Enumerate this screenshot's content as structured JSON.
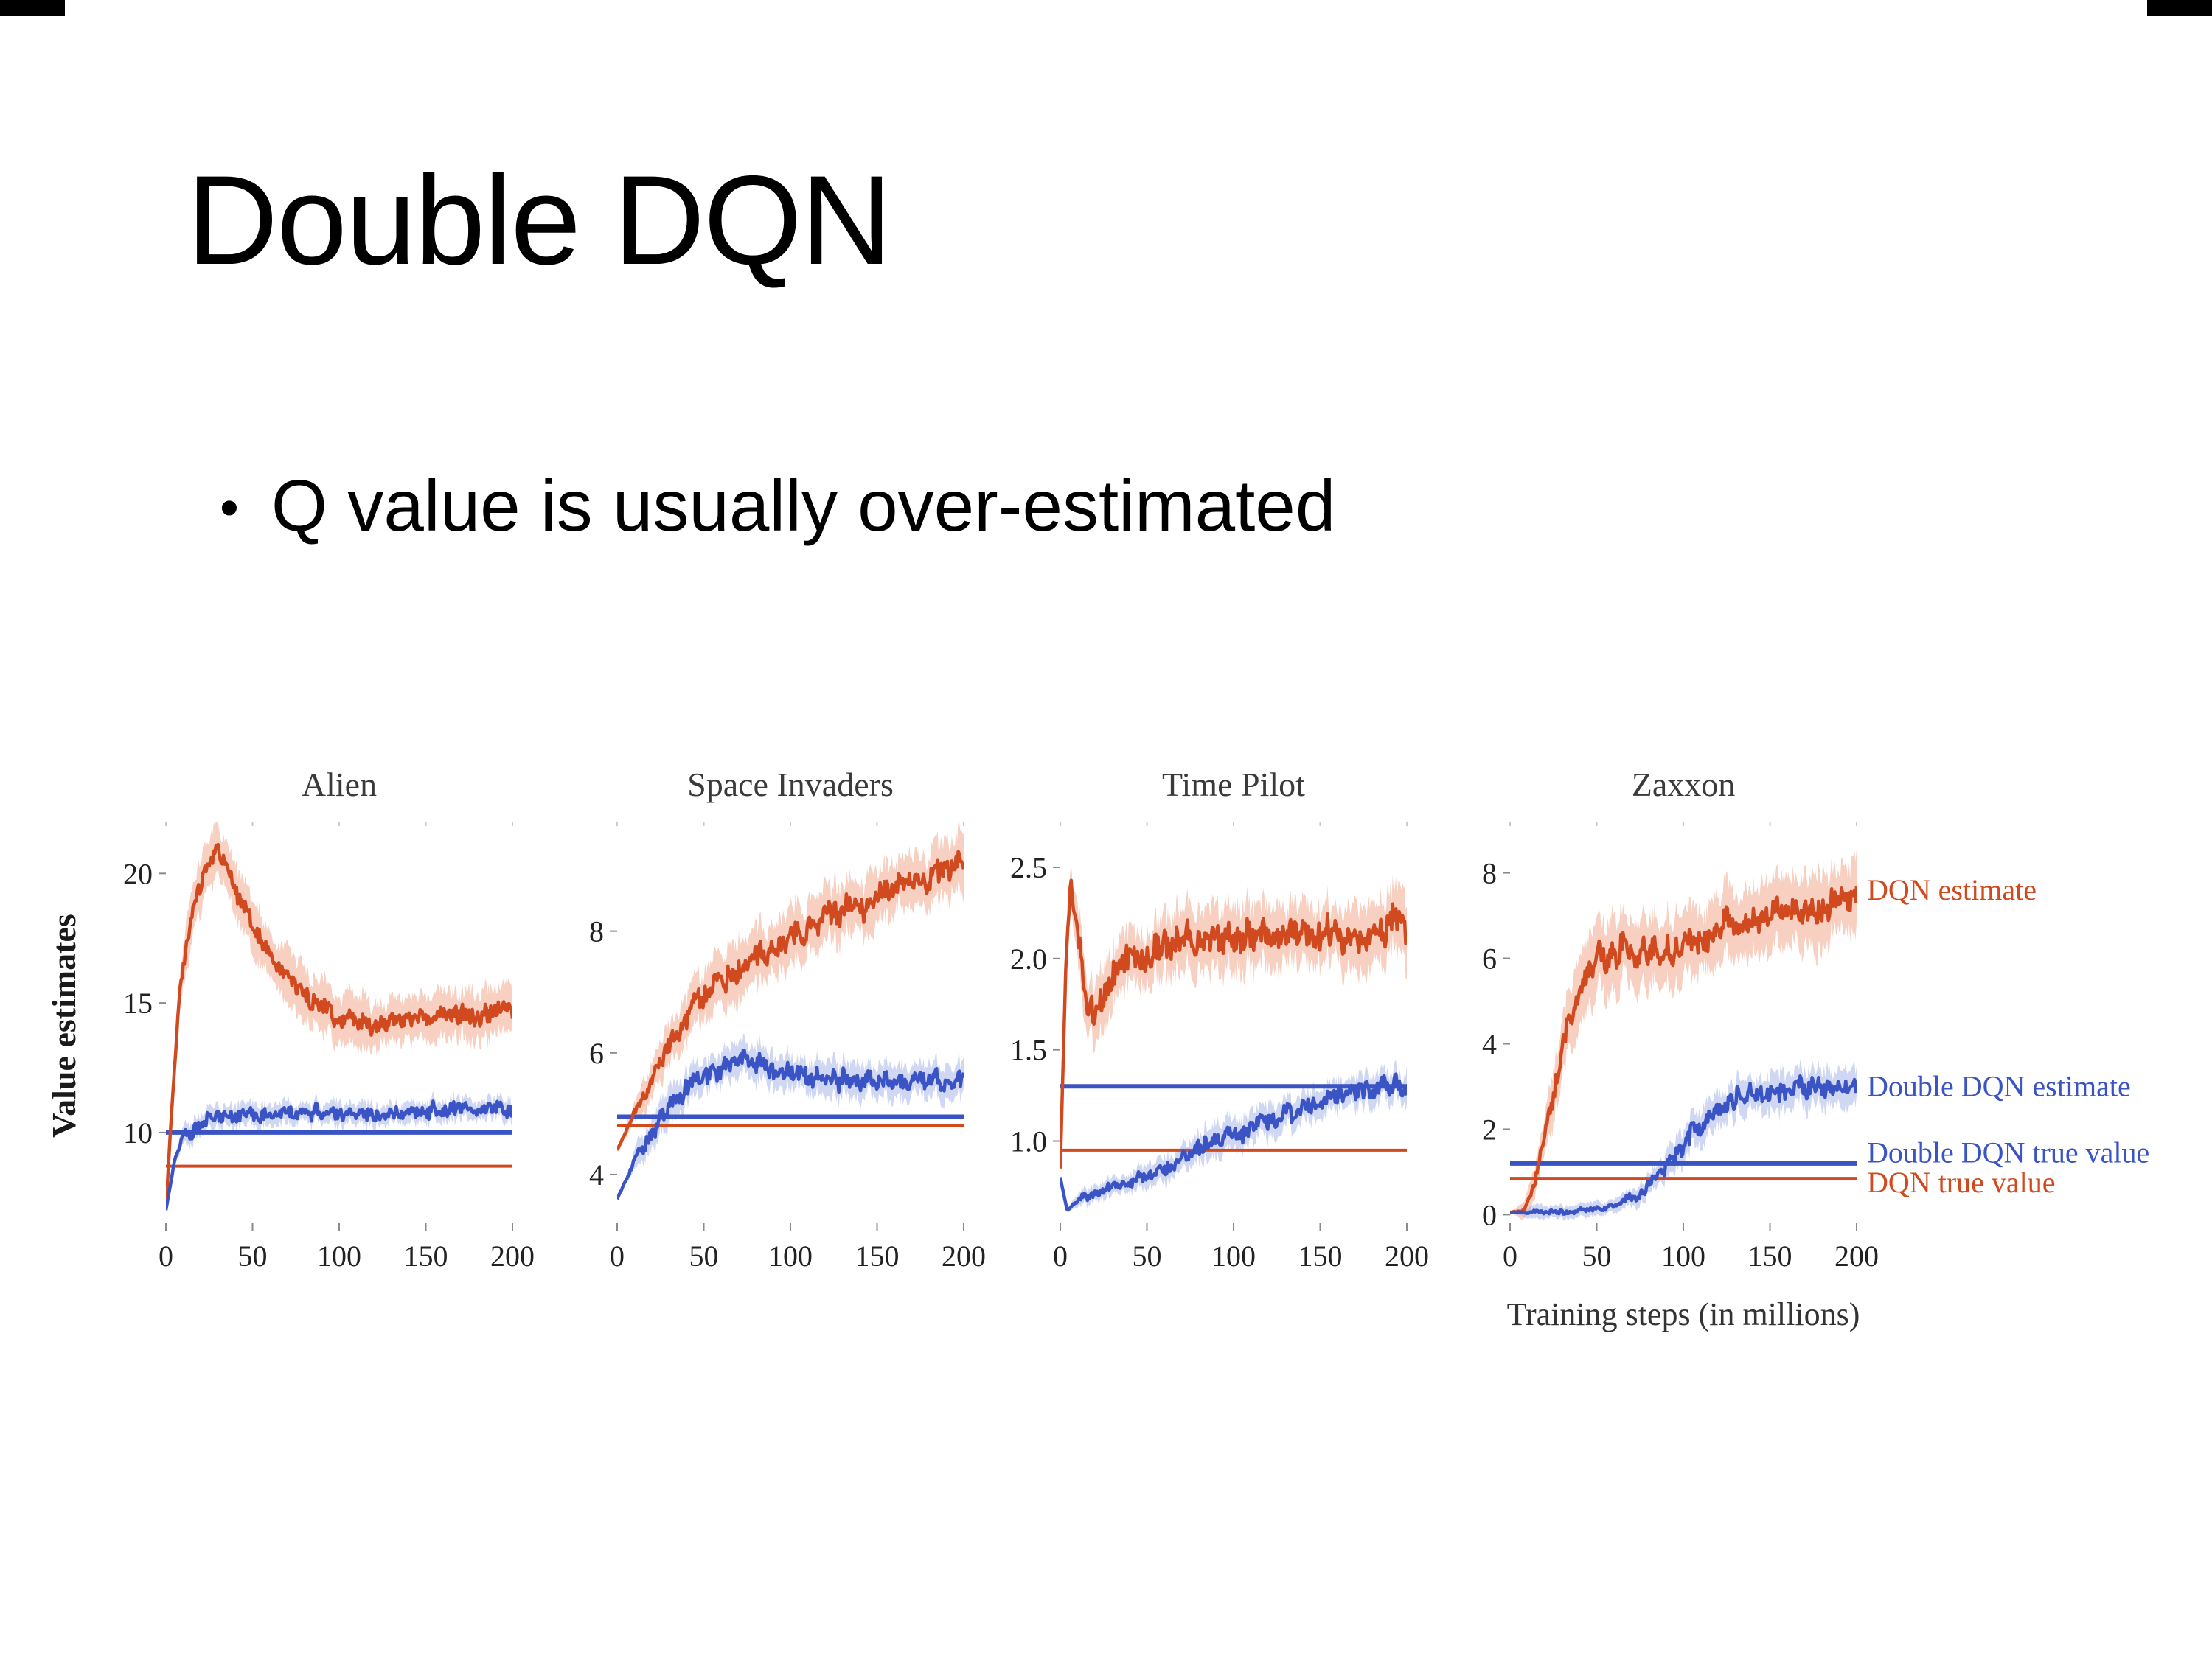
{
  "slide": {
    "title": "Double DQN",
    "bullet": "Q value is usually over-estimated"
  },
  "figure": {
    "ylabel": "Value estimates",
    "xlabel": "Training steps (in millions)",
    "colors": {
      "dqn": "#d1491f",
      "dqn_band": "#f0a284",
      "ddqn": "#3a53c5",
      "ddqn_band": "#9fb0e8"
    },
    "legend": [
      {
        "label": "DQN estimate",
        "color_key": "dqn",
        "y": 7.6
      },
      {
        "label": "Double DQN estimate",
        "color_key": "ddqn",
        "y": 3.0
      },
      {
        "label": "Double DQN true value",
        "color_key": "ddqn",
        "y": 1.45
      },
      {
        "label": "DQN true value",
        "color_key": "dqn",
        "y": 0.75
      }
    ]
  },
  "chart_data": [
    {
      "type": "line",
      "title": "Alien",
      "xlim": [
        0,
        200
      ],
      "xticks": [
        0,
        50,
        100,
        150,
        200
      ],
      "xtick_labels": [
        "0",
        "50",
        "100",
        "150",
        "200"
      ],
      "ylim": [
        6.5,
        22
      ],
      "yticks": [
        10,
        15,
        20
      ],
      "ytick_labels": [
        "10",
        "15",
        "20"
      ],
      "series": [
        {
          "name": "DQN estimate",
          "color_key": "dqn",
          "x": [
            0,
            3,
            8,
            15,
            22,
            30,
            38,
            50,
            65,
            80,
            100,
            120,
            140,
            160,
            180,
            200
          ],
          "y": [
            7.0,
            10.5,
            15.5,
            18.5,
            20.2,
            20.8,
            19.6,
            18.0,
            16.4,
            15.3,
            14.4,
            14.2,
            14.4,
            14.6,
            14.5,
            15.0
          ],
          "noise": 0.5,
          "band": 1.15
        },
        {
          "name": "Double DQN estimate",
          "color_key": "ddqn",
          "x": [
            0,
            5,
            10,
            20,
            30,
            50,
            80,
            110,
            140,
            170,
            200
          ],
          "y": [
            7.0,
            8.9,
            9.9,
            10.3,
            10.6,
            10.7,
            10.8,
            10.7,
            10.8,
            10.9,
            11.0
          ],
          "noise": 0.38,
          "band": 0.5
        }
      ],
      "hlines": [
        {
          "name": "Double DQN true value",
          "color_key": "ddqn",
          "y": 10.0
        },
        {
          "name": "DQN true value",
          "color_key": "dqn",
          "y": 8.7
        }
      ]
    },
    {
      "type": "line",
      "title": "Space Invaders",
      "xlim": [
        0,
        200
      ],
      "xticks": [
        0,
        50,
        100,
        150,
        200
      ],
      "xtick_labels": [
        "0",
        "50",
        "100",
        "150",
        "200"
      ],
      "ylim": [
        3.2,
        9.8
      ],
      "yticks": [
        4,
        6,
        8
      ],
      "ytick_labels": [
        "4",
        "6",
        "8"
      ],
      "series": [
        {
          "name": "DQN estimate",
          "color_key": "dqn",
          "x": [
            0,
            5,
            10,
            20,
            30,
            45,
            60,
            80,
            100,
            120,
            140,
            160,
            180,
            200
          ],
          "y": [
            4.4,
            4.7,
            5.0,
            5.6,
            6.2,
            6.8,
            7.2,
            7.6,
            7.9,
            8.2,
            8.5,
            8.7,
            8.9,
            9.2
          ],
          "noise": 0.3,
          "band": 0.55
        },
        {
          "name": "Double DQN estimate",
          "color_key": "ddqn",
          "x": [
            0,
            5,
            10,
            20,
            30,
            45,
            60,
            75,
            90,
            110,
            140,
            170,
            200
          ],
          "y": [
            3.6,
            3.9,
            4.25,
            4.7,
            5.1,
            5.5,
            5.8,
            5.9,
            5.75,
            5.62,
            5.55,
            5.5,
            5.6
          ],
          "noise": 0.22,
          "band": 0.33
        }
      ],
      "hlines": [
        {
          "name": "Double DQN true value",
          "color_key": "ddqn",
          "y": 4.95
        },
        {
          "name": "DQN true value",
          "color_key": "dqn",
          "y": 4.8
        }
      ]
    },
    {
      "type": "line",
      "title": "Time Pilot",
      "xlim": [
        0,
        200
      ],
      "xticks": [
        0,
        50,
        100,
        150,
        200
      ],
      "xtick_labels": [
        "0",
        "50",
        "100",
        "150",
        "200"
      ],
      "ylim": [
        0.55,
        2.75
      ],
      "yticks": [
        1.0,
        1.5,
        2.0,
        2.5
      ],
      "ytick_labels": [
        "1.0",
        "1.5",
        "2.0",
        "2.5"
      ],
      "series": [
        {
          "name": "DQN estimate",
          "color_key": "dqn",
          "x": [
            0,
            3,
            6,
            10,
            14,
            20,
            28,
            40,
            55,
            70,
            90,
            110,
            130,
            150,
            170,
            200
          ],
          "y": [
            0.85,
            1.9,
            2.45,
            2.15,
            1.8,
            1.75,
            1.9,
            2.0,
            2.05,
            2.1,
            2.1,
            2.15,
            2.1,
            2.15,
            2.1,
            2.2
          ],
          "noise": 0.13,
          "band": 0.2
        },
        {
          "name": "Double DQN estimate",
          "color_key": "ddqn",
          "x": [
            0,
            4,
            8,
            15,
            25,
            40,
            60,
            80,
            100,
            120,
            140,
            160,
            180,
            200
          ],
          "y": [
            0.8,
            0.62,
            0.66,
            0.7,
            0.73,
            0.78,
            0.85,
            0.95,
            1.05,
            1.12,
            1.18,
            1.24,
            1.28,
            1.3
          ],
          "noise": 0.07,
          "band": 0.1
        }
      ],
      "hlines": [
        {
          "name": "Double DQN true value",
          "color_key": "ddqn",
          "y": 1.3
        },
        {
          "name": "DQN true value",
          "color_key": "dqn",
          "y": 0.95
        }
      ]
    },
    {
      "type": "line",
      "title": "Zaxxon",
      "xlim": [
        0,
        200
      ],
      "xticks": [
        0,
        50,
        100,
        150,
        200
      ],
      "xtick_labels": [
        "0",
        "50",
        "100",
        "150",
        "200"
      ],
      "ylim": [
        -0.2,
        9.2
      ],
      "yticks": [
        0,
        2,
        4,
        6,
        8
      ],
      "ytick_labels": [
        "0",
        "2",
        "4",
        "6",
        "8"
      ],
      "series": [
        {
          "name": "DQN estimate",
          "color_key": "dqn",
          "x": [
            0,
            8,
            14,
            20,
            26,
            32,
            40,
            50,
            60,
            80,
            100,
            120,
            140,
            160,
            180,
            200
          ],
          "y": [
            0.05,
            0.1,
            0.7,
            1.8,
            3.0,
            4.2,
            5.3,
            6.0,
            6.2,
            6.1,
            6.4,
            6.6,
            6.9,
            7.1,
            7.2,
            7.5
          ],
          "noise": 0.45,
          "band": 1.0
        },
        {
          "name": "Double DQN estimate",
          "color_key": "ddqn",
          "x": [
            0,
            40,
            60,
            75,
            90,
            105,
            120,
            135,
            150,
            170,
            200
          ],
          "y": [
            0.05,
            0.08,
            0.18,
            0.5,
            1.1,
            1.9,
            2.5,
            2.8,
            2.9,
            3.0,
            3.0
          ],
          "noise": 0.3,
          "band": 0.5
        }
      ],
      "hlines": [
        {
          "name": "Double DQN true value",
          "color_key": "ddqn",
          "y": 1.2
        },
        {
          "name": "DQN true value",
          "color_key": "dqn",
          "y": 0.85
        }
      ]
    }
  ]
}
